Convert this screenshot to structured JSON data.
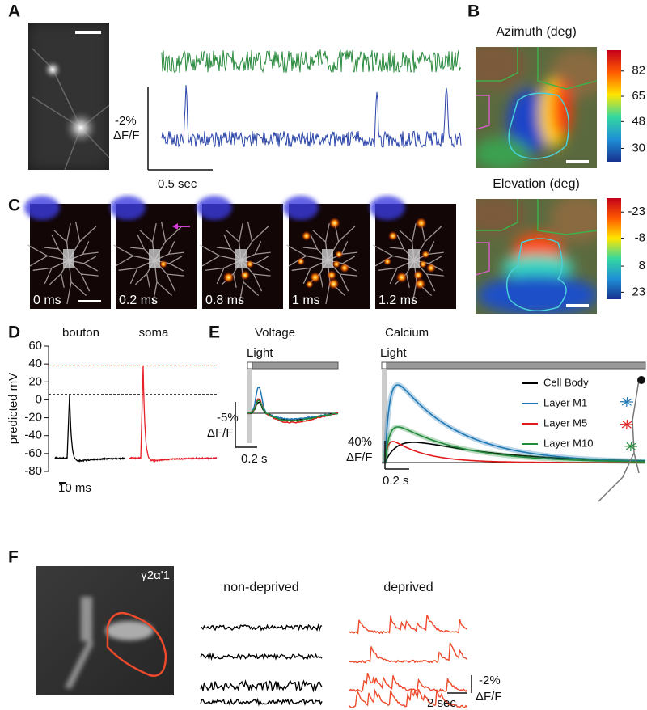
{
  "panel_labels": [
    "A",
    "B",
    "C",
    "D",
    "E",
    "F"
  ],
  "panel_a": {
    "scale_y": "-2%",
    "scale_y_unit": "ΔF/F",
    "scale_x": "0.5 sec"
  },
  "panel_b": {
    "maps": [
      {
        "title": "Azimuth (deg)",
        "clim": [
          96,
          21
        ],
        "colorbar_ticks": [
          82,
          65,
          48,
          30
        ]
      },
      {
        "title": "Elevation (deg)",
        "clim": [
          -31,
          27
        ],
        "colorbar_ticks": [
          -23,
          -8,
          8,
          23
        ]
      }
    ]
  },
  "panel_c": {
    "frames": [
      "0 ms",
      "0.2 ms",
      "0.8 ms",
      "1 ms",
      "1.2 ms"
    ]
  },
  "panel_d": {
    "type": "line",
    "ylabel": "predicted mV",
    "ylim": [
      -80,
      60
    ],
    "yticks": [
      60,
      40,
      20,
      0,
      -20,
      -40,
      -60,
      -80
    ],
    "series": [
      {
        "name": "bouton",
        "color": "#000000",
        "baseline": -65,
        "peak": 6
      },
      {
        "name": "soma",
        "color": "#e8202a",
        "baseline": -65,
        "peak": 38
      }
    ],
    "scale_x": "10 ms"
  },
  "panel_e": {
    "voltage": {
      "title": "Voltage",
      "stimulus": "Light",
      "scale_y": "-5%",
      "scale_y_unit": "ΔF/F",
      "scale_x": "0.2 s"
    },
    "calcium": {
      "title": "Calcium",
      "stimulus": "Light",
      "scale_y": "40%",
      "scale_y_unit": "ΔF/F",
      "scale_x": "0.2 s"
    },
    "legend": [
      {
        "name": "Cell Body",
        "color": "#000000"
      },
      {
        "name": "Layer M1",
        "color": "#1f78b4"
      },
      {
        "name": "Layer M5",
        "color": "#e31a1c"
      },
      {
        "name": "Layer M10",
        "color": "#228b3b"
      }
    ]
  },
  "panel_f": {
    "image_label": "γ2α'1",
    "groups": [
      {
        "name": "non-deprived",
        "color": "#000000"
      },
      {
        "name": "deprived",
        "color": "#ee4a2b"
      }
    ],
    "scale_y": "-2%",
    "scale_y_unit": "ΔF/F",
    "scale_x": "2 sec"
  }
}
